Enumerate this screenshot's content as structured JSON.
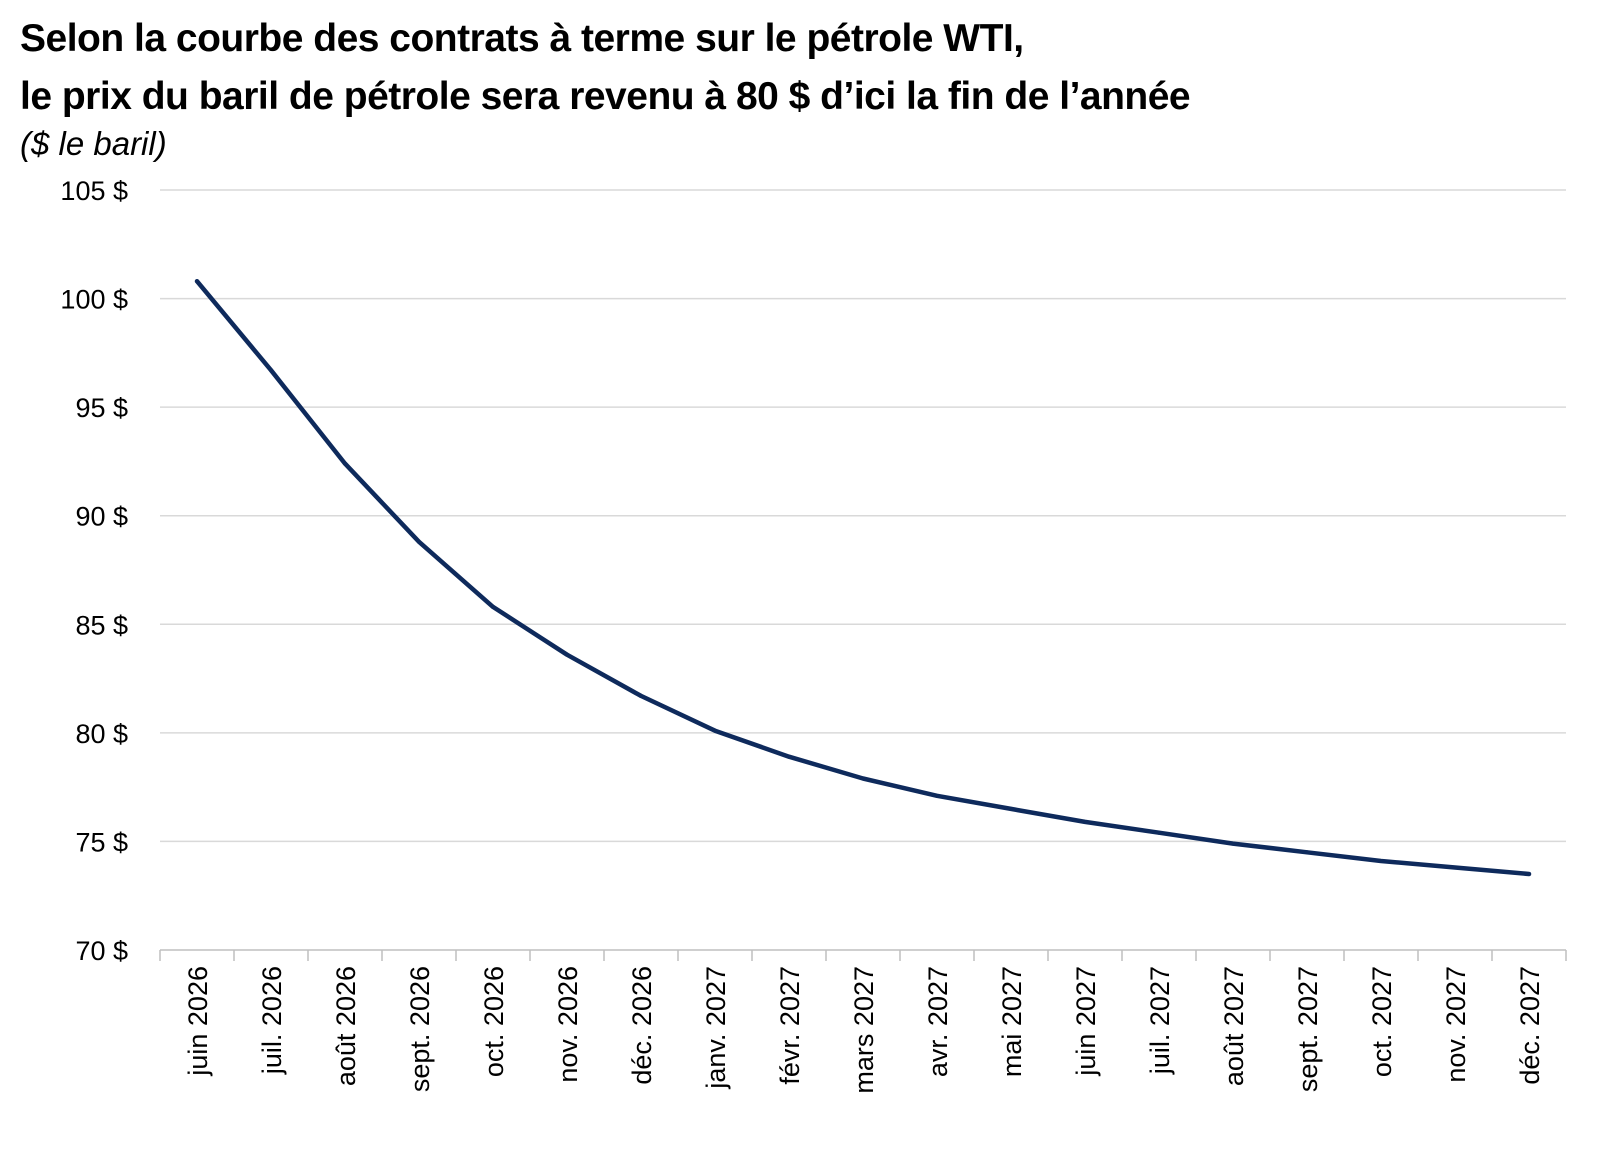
{
  "chart_data": {
    "type": "line",
    "title_lines": [
      "Selon la courbe des contrats à terme sur le pétrole WTI,",
      "le prix du baril de pétrole sera revenu à 80 $ d’ici la fin de l’année"
    ],
    "subtitle": "($ le baril)",
    "categories": [
      "juin 2026",
      "juil. 2026",
      "août 2026",
      "sept. 2026",
      "oct. 2026",
      "nov. 2026",
      "déc. 2026",
      "janv. 2027",
      "févr. 2027",
      "mars 2027",
      "avr. 2027",
      "mai 2027",
      "juin 2027",
      "juil. 2027",
      "août 2027",
      "sept. 2027",
      "oct. 2027",
      "nov. 2027",
      "déc. 2027"
    ],
    "series": [
      {
        "color": "#0e2a5c",
        "values": [
          100.8,
          96.7,
          92.4,
          88.8,
          85.8,
          83.6,
          81.7,
          80.1,
          78.9,
          77.9,
          77.1,
          76.5,
          75.9,
          75.4,
          74.9,
          74.5,
          74.1,
          73.8,
          73.5
        ]
      }
    ],
    "ylim": [
      70,
      105
    ],
    "yticks": [
      105,
      100,
      95,
      90,
      85,
      80,
      75,
      70
    ],
    "ytick_labels": [
      "105 $",
      "100 $",
      "95 $",
      "90 $",
      "85 $",
      "80 $",
      "75 $",
      "70 $"
    ],
    "grid": true,
    "gridline_color": "#d9d9d9"
  }
}
